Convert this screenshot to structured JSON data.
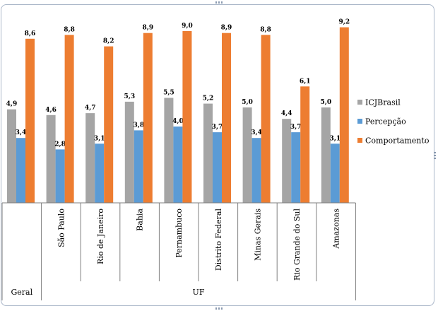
{
  "chart_data": {
    "type": "bar",
    "groups": [
      {
        "label": "Geral",
        "categories": [
          ""
        ]
      },
      {
        "label": "UF",
        "categories": [
          "São Paulo",
          "Rio de Janeiro",
          "Bahia",
          "Pernambuco",
          "Distrito Federal",
          "Minas Gerais",
          "Rio Grande do Sul",
          "Amazonas"
        ]
      }
    ],
    "categories": [
      "",
      "São Paulo",
      "Rio de Janeiro",
      "Bahia",
      "Pernambuco",
      "Distrito Federal",
      "Minas Gerais",
      "Rio Grande do Sul",
      "Amazonas"
    ],
    "series": [
      {
        "name": "ICJBrasil",
        "color": "#a5a5a5",
        "values": [
          4.9,
          4.6,
          4.7,
          5.3,
          5.5,
          5.2,
          5.0,
          4.4,
          5.0
        ],
        "labels": [
          "4,9",
          "4,6",
          "4,7",
          "5,3",
          "5,5",
          "5,2",
          "5,0",
          "4,4",
          "5,0"
        ]
      },
      {
        "name": "Percepção",
        "color": "#5b9bd5",
        "values": [
          3.4,
          2.8,
          3.1,
          3.8,
          4.0,
          3.7,
          3.4,
          3.7,
          3.1
        ],
        "labels": [
          "3,4",
          "2,8",
          "3,1",
          "3,8",
          "4,0",
          "3,7",
          "3,4",
          "3,7",
          "3,1"
        ]
      },
      {
        "name": "Comportamento",
        "color": "#ed7d31",
        "values": [
          8.6,
          8.8,
          8.2,
          8.9,
          9.0,
          8.9,
          8.8,
          6.1,
          9.2
        ],
        "labels": [
          "8,6",
          "8,8",
          "8,2",
          "8,9",
          "9,0",
          "8,9",
          "8,8",
          "6,1",
          "9,2"
        ]
      }
    ],
    "ylim": [
      0,
      10
    ],
    "grid": false,
    "legend": "right"
  }
}
